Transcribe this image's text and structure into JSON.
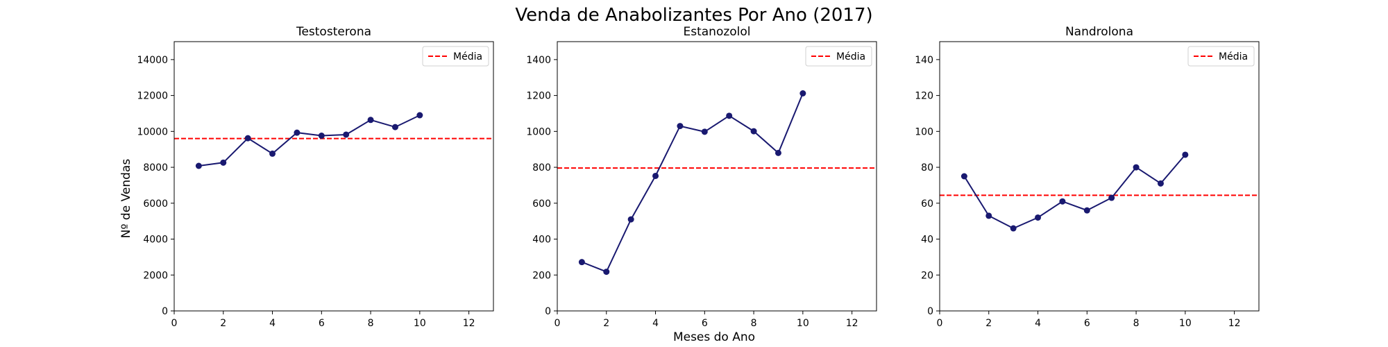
{
  "title": "Venda de Anabolizantes Por Ano (2017)",
  "xlabel": "Meses do Ano",
  "ylabel": "Nº de Vendas",
  "colors": {
    "line": "#191970",
    "mean": "#ff0000",
    "axes": "#000000"
  },
  "chart_data": [
    {
      "type": "line",
      "title": "Testosterona",
      "x": [
        1,
        2,
        3,
        4,
        5,
        6,
        7,
        8,
        9,
        10
      ],
      "series": [
        {
          "values": [
            8080,
            8260,
            9620,
            8760,
            9930,
            9760,
            9820,
            10640,
            10240,
            10900
          ]
        }
      ],
      "mean": 9600,
      "legend_label": "Média",
      "legend_position": "top-right",
      "xlim": [
        0,
        13
      ],
      "ylim": [
        0,
        15000
      ],
      "xticks": [
        0,
        2,
        4,
        6,
        8,
        10,
        12
      ],
      "yticks": [
        0,
        2000,
        4000,
        6000,
        8000,
        10000,
        12000,
        14000
      ],
      "grid": false
    },
    {
      "type": "line",
      "title": "Estanozolol",
      "x": [
        1,
        2,
        3,
        4,
        5,
        6,
        7,
        8,
        9,
        10
      ],
      "series": [
        {
          "values": [
            272,
            218,
            510,
            752,
            1030,
            998,
            1087,
            1001,
            880,
            1212
          ]
        }
      ],
      "mean": 796,
      "legend_label": "Média",
      "legend_position": "top-right",
      "xlim": [
        0,
        13
      ],
      "ylim": [
        0,
        1500
      ],
      "xticks": [
        0,
        2,
        4,
        6,
        8,
        10,
        12
      ],
      "yticks": [
        0,
        200,
        400,
        600,
        800,
        1000,
        1200,
        1400
      ],
      "grid": false
    },
    {
      "type": "line",
      "title": "Nandrolona",
      "x": [
        1,
        2,
        3,
        4,
        5,
        6,
        7,
        8,
        9,
        10
      ],
      "series": [
        {
          "values": [
            75,
            53,
            46,
            52,
            61,
            56,
            63,
            80,
            71,
            87
          ]
        }
      ],
      "mean": 64.4,
      "legend_label": "Média",
      "legend_position": "top-right",
      "xlim": [
        0,
        13
      ],
      "ylim": [
        0,
        150
      ],
      "xticks": [
        0,
        2,
        4,
        6,
        8,
        10,
        12
      ],
      "yticks": [
        0,
        20,
        40,
        60,
        80,
        100,
        120,
        140
      ],
      "grid": false
    }
  ]
}
